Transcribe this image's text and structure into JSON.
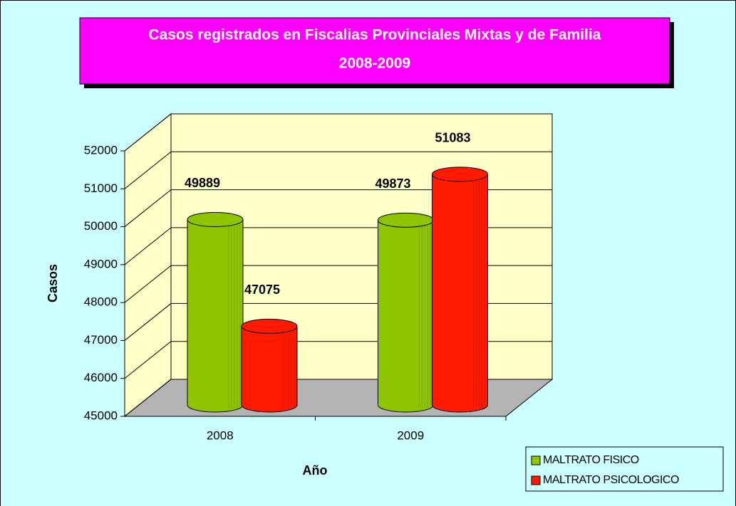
{
  "chart_data": {
    "type": "bar3d",
    "title": [
      "Casos registrados en Fiscalias Provinciales Mixtas y de Familia",
      "2008-2009"
    ],
    "xlabel": "Año",
    "ylabel": "Casos",
    "categories": [
      "2008",
      "2009"
    ],
    "series": [
      {
        "name": "MALTRATO FISICO",
        "color": "#8fc400",
        "values": [
          49889,
          49873
        ]
      },
      {
        "name": "MALTRATO PSICOLOGICO",
        "color": "#ff1a00",
        "values": [
          47075,
          51083
        ]
      }
    ],
    "ylim": [
      45000,
      52000
    ],
    "yticks": [
      45000,
      46000,
      47000,
      48000,
      49000,
      50000,
      51000,
      52000
    ],
    "grid": true,
    "legend": "lower right"
  }
}
